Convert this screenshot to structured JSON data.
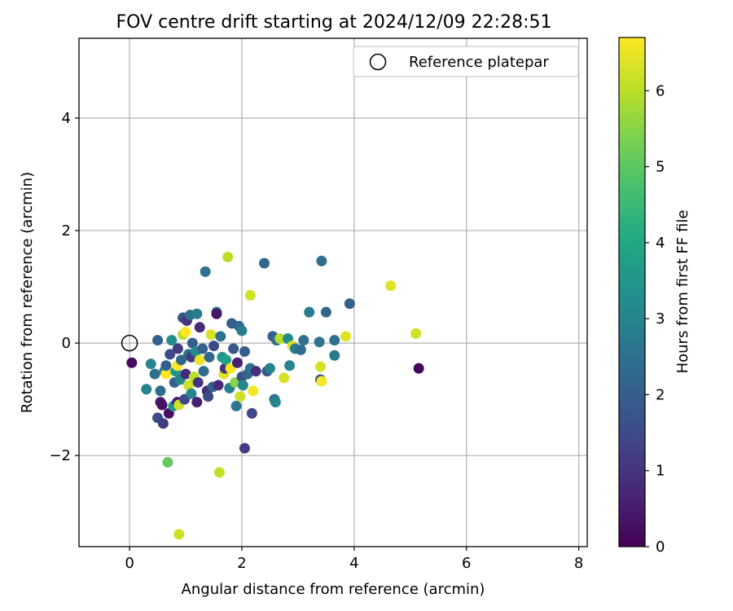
{
  "chart_data": {
    "type": "scatter",
    "title": "FOV centre drift starting at 2024/12/09 22:28:51",
    "xlabel": "Angular distance from reference (arcmin)",
    "ylabel": "Rotation from reference (arcmin)",
    "xlim": [
      -0.9,
      8.15
    ],
    "ylim": [
      -3.62,
      5.42
    ],
    "xticks": [
      0,
      2,
      4,
      6,
      8
    ],
    "yticks": [
      -2,
      0,
      2,
      4
    ],
    "xtick_labels": [
      "0",
      "2",
      "4",
      "6",
      "8"
    ],
    "ytick_labels": [
      "−2",
      "0",
      "2",
      "4"
    ],
    "grid": true,
    "legend": {
      "location": "upper right",
      "entries": [
        {
          "label": "Reference platepar",
          "marker": "open-circle"
        }
      ]
    },
    "reference_point": {
      "x": 0,
      "y": 0
    },
    "colorbar": {
      "label": "Hours from first FF file",
      "colormap": "viridis",
      "range": [
        0,
        6.7
      ],
      "ticks": [
        0,
        1,
        2,
        3,
        4,
        5,
        6
      ],
      "tick_labels": [
        "0",
        "1",
        "2",
        "3",
        "4",
        "5",
        "6"
      ]
    },
    "points": [
      {
        "x": 0.04,
        "y": -0.35,
        "h": 0.2
      },
      {
        "x": 0.3,
        "y": -0.82,
        "h": 3.0
      },
      {
        "x": 0.38,
        "y": -0.37,
        "h": 3.0
      },
      {
        "x": 0.45,
        "y": -0.55,
        "h": 2.5
      },
      {
        "x": 0.5,
        "y": 0.05,
        "h": 2.0
      },
      {
        "x": 0.5,
        "y": -1.33,
        "h": 1.5
      },
      {
        "x": 0.55,
        "y": -0.85,
        "h": 2.3
      },
      {
        "x": 0.55,
        "y": -1.05,
        "h": 0.5
      },
      {
        "x": 0.58,
        "y": -1.1,
        "h": 0.3
      },
      {
        "x": 0.6,
        "y": -1.43,
        "h": 1.2
      },
      {
        "x": 0.62,
        "y": -0.5,
        "h": 2.8
      },
      {
        "x": 0.65,
        "y": -0.55,
        "h": 6.7
      },
      {
        "x": 0.65,
        "y": -0.4,
        "h": 2.0
      },
      {
        "x": 0.68,
        "y": -2.12,
        "h": 5.1
      },
      {
        "x": 0.7,
        "y": -1.25,
        "h": 0.3
      },
      {
        "x": 0.72,
        "y": -0.2,
        "h": 1.5
      },
      {
        "x": 0.75,
        "y": 0.05,
        "h": 3.2
      },
      {
        "x": 0.78,
        "y": -1.12,
        "h": 3.5
      },
      {
        "x": 0.8,
        "y": -0.7,
        "h": 2.0
      },
      {
        "x": 0.82,
        "y": -0.5,
        "h": 3.5
      },
      {
        "x": 0.85,
        "y": -0.4,
        "h": 6.7
      },
      {
        "x": 0.85,
        "y": -1.05,
        "h": 0.5
      },
      {
        "x": 0.86,
        "y": -0.1,
        "h": 1.2
      },
      {
        "x": 0.88,
        "y": -1.1,
        "h": 6.2
      },
      {
        "x": 0.88,
        "y": -3.4,
        "h": 6.2
      },
      {
        "x": 0.9,
        "y": -0.65,
        "h": 3.0
      },
      {
        "x": 0.92,
        "y": -0.3,
        "h": 2.2
      },
      {
        "x": 0.95,
        "y": 0.45,
        "h": 1.8
      },
      {
        "x": 0.95,
        "y": 0.15,
        "h": 6.0
      },
      {
        "x": 0.98,
        "y": -1.0,
        "h": 1.5
      },
      {
        "x": 1.0,
        "y": -0.55,
        "h": 0.8
      },
      {
        "x": 1.0,
        "y": 0.2,
        "h": 6.7
      },
      {
        "x": 1.02,
        "y": 0.4,
        "h": 1.0
      },
      {
        "x": 1.05,
        "y": -0.2,
        "h": 2.5
      },
      {
        "x": 1.05,
        "y": -0.75,
        "h": 6.2
      },
      {
        "x": 1.08,
        "y": 0.5,
        "h": 2.5
      },
      {
        "x": 1.1,
        "y": -0.25,
        "h": 1.2
      },
      {
        "x": 1.1,
        "y": -0.9,
        "h": 3.0
      },
      {
        "x": 1.12,
        "y": 0.0,
        "h": 2.0
      },
      {
        "x": 1.15,
        "y": -0.6,
        "h": 6.0
      },
      {
        "x": 1.18,
        "y": -0.15,
        "h": 3.2
      },
      {
        "x": 1.2,
        "y": -1.05,
        "h": 0.6
      },
      {
        "x": 1.2,
        "y": 0.52,
        "h": 2.8
      },
      {
        "x": 1.22,
        "y": -0.7,
        "h": 1.0
      },
      {
        "x": 1.25,
        "y": 0.28,
        "h": 0.8
      },
      {
        "x": 1.25,
        "y": -0.3,
        "h": 6.5
      },
      {
        "x": 1.3,
        "y": -0.1,
        "h": 2.0
      },
      {
        "x": 1.32,
        "y": -0.5,
        "h": 2.4
      },
      {
        "x": 1.35,
        "y": 1.27,
        "h": 2.5
      },
      {
        "x": 1.38,
        "y": -0.85,
        "h": 0.9
      },
      {
        "x": 1.4,
        "y": -0.95,
        "h": 1.5
      },
      {
        "x": 1.42,
        "y": -0.25,
        "h": 2.2
      },
      {
        "x": 1.45,
        "y": 0.15,
        "h": 6.3
      },
      {
        "x": 1.48,
        "y": -0.78,
        "h": 2.0
      },
      {
        "x": 1.5,
        "y": -0.05,
        "h": 1.5
      },
      {
        "x": 1.55,
        "y": 0.55,
        "h": 2.6
      },
      {
        "x": 1.55,
        "y": 0.52,
        "h": 0.4
      },
      {
        "x": 1.58,
        "y": -0.75,
        "h": 0.8
      },
      {
        "x": 1.6,
        "y": -2.3,
        "h": 6.1
      },
      {
        "x": 1.62,
        "y": 0.12,
        "h": 2.5
      },
      {
        "x": 1.65,
        "y": -0.25,
        "h": 3.5
      },
      {
        "x": 1.68,
        "y": -0.55,
        "h": 6.4
      },
      {
        "x": 1.7,
        "y": -0.45,
        "h": 1.0
      },
      {
        "x": 1.72,
        "y": -0.3,
        "h": 3.8
      },
      {
        "x": 1.75,
        "y": 1.53,
        "h": 6.0
      },
      {
        "x": 1.78,
        "y": -0.8,
        "h": 2.8
      },
      {
        "x": 1.8,
        "y": -0.45,
        "h": 6.7
      },
      {
        "x": 1.82,
        "y": 0.35,
        "h": 2.0
      },
      {
        "x": 1.85,
        "y": -0.1,
        "h": 1.8
      },
      {
        "x": 1.88,
        "y": -0.7,
        "h": 5.5
      },
      {
        "x": 1.9,
        "y": -1.12,
        "h": 2.6
      },
      {
        "x": 1.92,
        "y": -0.35,
        "h": 0.6
      },
      {
        "x": 1.95,
        "y": 0.3,
        "h": 2.2
      },
      {
        "x": 1.97,
        "y": -0.95,
        "h": 6.2
      },
      {
        "x": 2.0,
        "y": 0.22,
        "h": 2.8
      },
      {
        "x": 2.0,
        "y": -0.6,
        "h": 1.6
      },
      {
        "x": 2.02,
        "y": -0.75,
        "h": 3.0
      },
      {
        "x": 2.05,
        "y": -1.87,
        "h": 1.2
      },
      {
        "x": 2.05,
        "y": -0.15,
        "h": 2.0
      },
      {
        "x": 2.1,
        "y": -0.55,
        "h": 2.2
      },
      {
        "x": 2.15,
        "y": 0.85,
        "h": 6.2
      },
      {
        "x": 2.15,
        "y": -0.45,
        "h": 2.5
      },
      {
        "x": 2.18,
        "y": -1.25,
        "h": 1.4
      },
      {
        "x": 2.2,
        "y": -0.85,
        "h": 6.6
      },
      {
        "x": 2.25,
        "y": -0.5,
        "h": 0.9
      },
      {
        "x": 2.4,
        "y": 1.42,
        "h": 2.2
      },
      {
        "x": 2.45,
        "y": -0.5,
        "h": 1.8
      },
      {
        "x": 2.5,
        "y": -0.45,
        "h": 3.0
      },
      {
        "x": 2.55,
        "y": 0.12,
        "h": 2.0
      },
      {
        "x": 2.58,
        "y": -1.0,
        "h": 2.5
      },
      {
        "x": 2.6,
        "y": -1.05,
        "h": 3.0
      },
      {
        "x": 2.62,
        "y": 0.05,
        "h": 2.4
      },
      {
        "x": 2.68,
        "y": 0.08,
        "h": 6.0
      },
      {
        "x": 2.75,
        "y": -0.62,
        "h": 6.3
      },
      {
        "x": 2.82,
        "y": 0.08,
        "h": 3.2
      },
      {
        "x": 2.85,
        "y": -0.4,
        "h": 3.0
      },
      {
        "x": 2.9,
        "y": -0.05,
        "h": 6.3
      },
      {
        "x": 2.95,
        "y": -0.1,
        "h": 2.8
      },
      {
        "x": 3.05,
        "y": -0.12,
        "h": 2.3
      },
      {
        "x": 3.1,
        "y": 0.05,
        "h": 2.4
      },
      {
        "x": 3.2,
        "y": 0.55,
        "h": 2.8
      },
      {
        "x": 3.38,
        "y": 0.02,
        "h": 2.6
      },
      {
        "x": 3.4,
        "y": -0.42,
        "h": 6.3
      },
      {
        "x": 3.4,
        "y": -0.65,
        "h": 1.5
      },
      {
        "x": 3.42,
        "y": 1.46,
        "h": 2.4
      },
      {
        "x": 3.42,
        "y": -0.68,
        "h": 6.6
      },
      {
        "x": 3.5,
        "y": 0.55,
        "h": 2.2
      },
      {
        "x": 3.65,
        "y": -0.22,
        "h": 2.8
      },
      {
        "x": 3.65,
        "y": 0.05,
        "h": 2.5
      },
      {
        "x": 3.85,
        "y": 0.12,
        "h": 6.4
      },
      {
        "x": 3.92,
        "y": 0.7,
        "h": 2.0
      },
      {
        "x": 4.65,
        "y": 1.02,
        "h": 6.4
      },
      {
        "x": 5.1,
        "y": 0.17,
        "h": 6.2
      },
      {
        "x": 5.15,
        "y": -0.45,
        "h": 0.1
      }
    ]
  }
}
